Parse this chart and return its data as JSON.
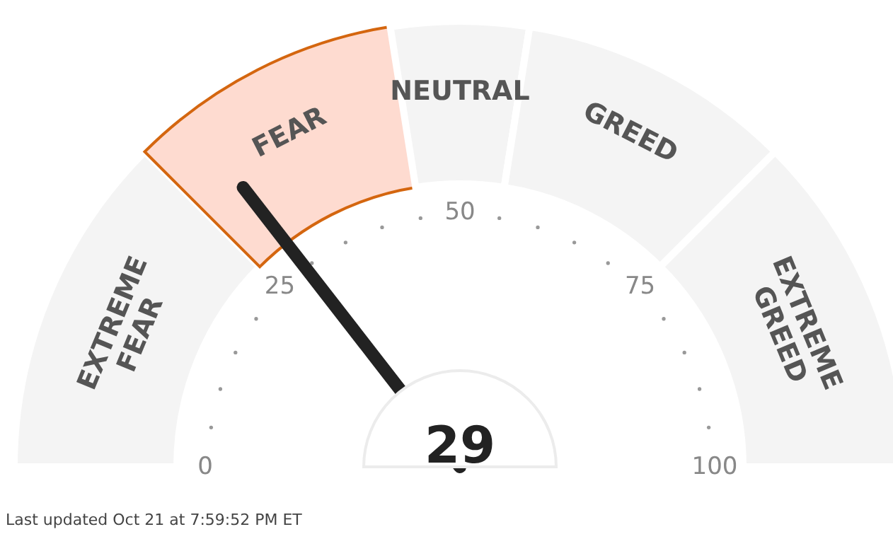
{
  "chart_data": {
    "type": "donut",
    "categories": [
      "EXTREME FEAR",
      "FEAR",
      "NEUTRAL",
      "GREED",
      "EXTREME GREED"
    ],
    "values": [
      25,
      20,
      10,
      20,
      25
    ],
    "colors": [
      "#f4f4f4",
      "#fedbd0",
      "#f4f4f4",
      "#f4f4f4",
      "#f4f4f4"
    ],
    "needle": "FEAR",
    "annotations": [
      "0",
      "25",
      "50",
      "75",
      "100",
      "29",
      "Last updated Oct 21 at 7:59:52 PM ET"
    ]
  }
}
